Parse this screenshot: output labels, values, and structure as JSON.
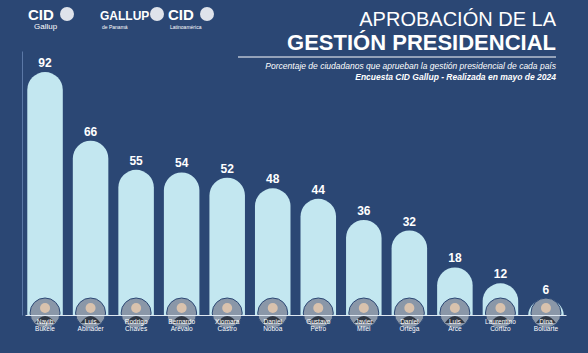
{
  "chart_data": {
    "type": "bar",
    "title": [
      "APROBACIÓN DE LA",
      "GESTIÓN PRESIDENCIAL"
    ],
    "subtitle": [
      "Porcentaje de ciudadanos que aprueban la gestión presidencial de cada país",
      "Encuesta CID Gallup - Realizada en mayo de 2024"
    ],
    "annotations": [
      "CID",
      "Gallup",
      "GALLUP",
      "de Panamá",
      "CID",
      "Latinoamérica"
    ],
    "categories": [
      "Nayib Bukele",
      "Luis Abinader",
      "Rodrigo Chaves",
      "Bernardo Arévalo",
      "Xiomara Castro",
      "Daniel Noboa",
      "Gustavo Petro",
      "Javier Milei",
      "Daniel Ortega",
      "Luis Arce",
      "Laurentino Cortizo",
      "Dina Boluarte"
    ],
    "values": [
      92,
      66,
      55,
      54,
      52,
      48,
      44,
      36,
      32,
      18,
      12,
      6
    ],
    "color": "#c3e7f0",
    "ylim": [
      0,
      100
    ],
    "yticks": [],
    "data_labels": true,
    "tick_labels": "x",
    "grid": false
  }
}
